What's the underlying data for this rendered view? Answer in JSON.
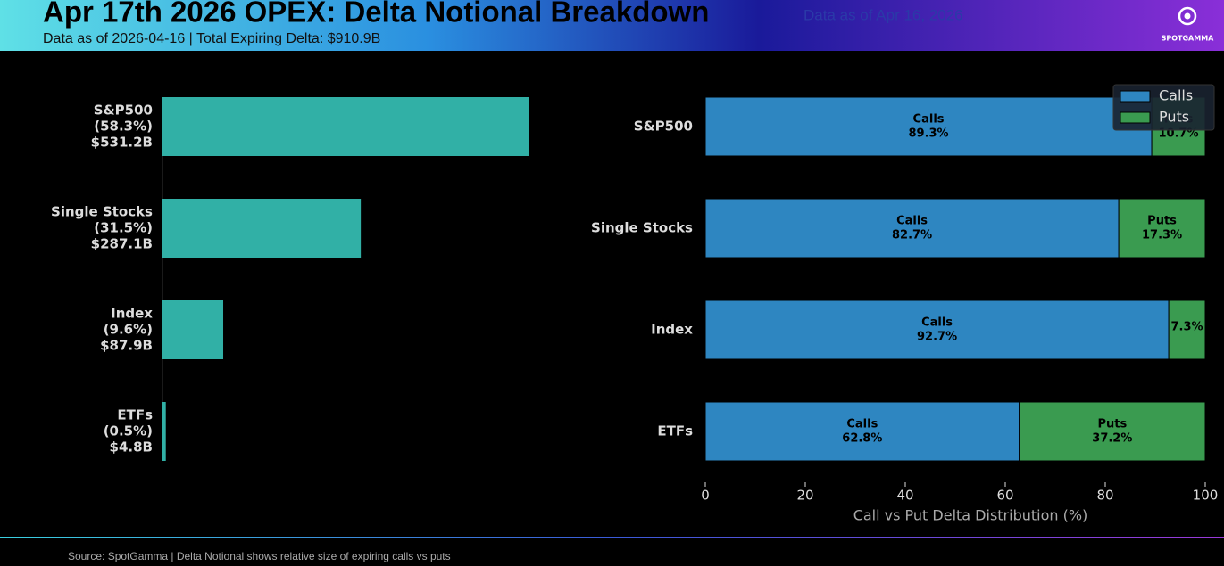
{
  "header": {
    "title": "Apr 17th 2026 OPEX: Delta Notional Breakdown",
    "subtitle": "Data as of 2026-04-16 | Total Expiring Delta: $910.9B",
    "date_note": "Data as of Apr 16, 2026",
    "brand": "SPOTGAMMA"
  },
  "chart_data": [
    {
      "type": "barh",
      "categories": [
        "S&P500",
        "Single Stocks",
        "Index",
        "ETFs"
      ],
      "values": [
        531.2,
        287.1,
        87.9,
        4.8
      ],
      "value_labels": [
        "$531.2B",
        "$287.1B",
        "$87.9B",
        "$4.8B"
      ],
      "shares": [
        58.3,
        31.5,
        9.6,
        0.5
      ],
      "share_labels": [
        "(58.3%)",
        "(31.5%)",
        "(9.6%)",
        "(0.5%)"
      ],
      "color": "#31b0a6"
    },
    {
      "type": "stacked-barh",
      "categories": [
        "S&P500",
        "Single Stocks",
        "Index",
        "ETFs"
      ],
      "series": [
        {
          "name": "Calls",
          "color": "#2e86c1",
          "values": [
            89.3,
            82.7,
            92.7,
            62.8
          ],
          "value_labels": [
            "89.3%",
            "82.7%",
            "92.7%",
            "62.8%"
          ]
        },
        {
          "name": "Puts",
          "color": "#3a9b50",
          "values": [
            10.7,
            17.3,
            7.3,
            37.2
          ],
          "value_labels": [
            "10.7%",
            "17.3%",
            "7.3%",
            "37.2%"
          ]
        }
      ],
      "xlabel": "Call vs Put Delta Distribution (%)",
      "xlim": [
        0,
        100
      ],
      "xticks": [
        0,
        20,
        40,
        60,
        80,
        100
      ],
      "legend": "upper right"
    }
  ],
  "footer": {
    "source": "Source: SpotGamma | Delta Notional shows relative size of expiring calls vs puts"
  }
}
